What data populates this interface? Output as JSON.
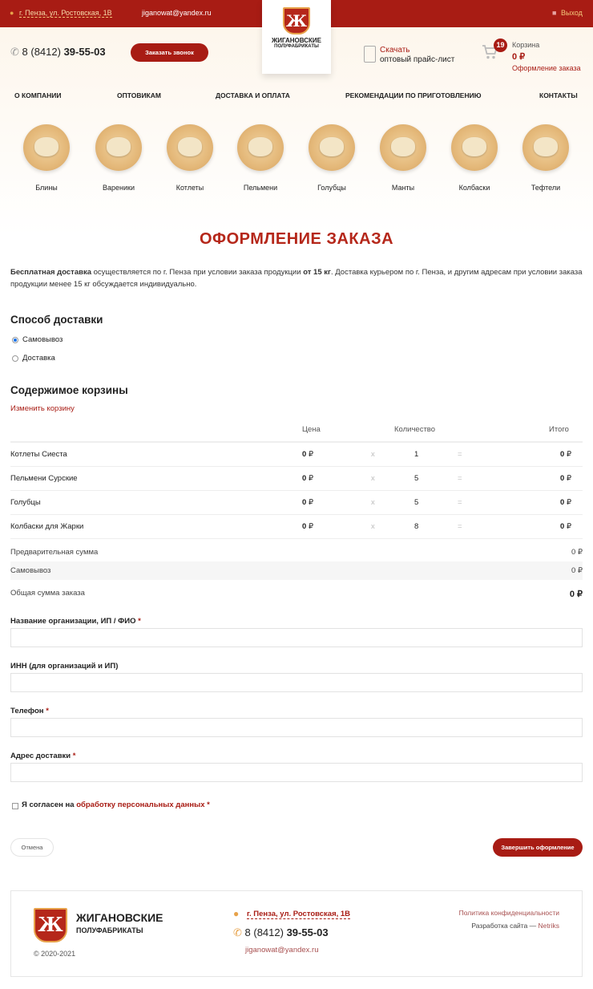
{
  "topbar": {
    "address": "г. Пенза, ул. Ростовская, 1В",
    "email": "jiganowat@yandex.ru",
    "logout": "Выход"
  },
  "logo": {
    "letter": "Ж",
    "line1": "ЖИГАНОВСКИЕ",
    "line2": "ПОЛУФАБРИКАТЫ"
  },
  "header": {
    "phone_prefix": "8 (8412)",
    "phone_main": "39-55-03",
    "callback": "Заказать звонок",
    "download_title": "Скачать",
    "download_sub": "оптовый прайс-лист",
    "cart_count": "19",
    "cart_label": "Корзина",
    "cart_total": "0 ₽",
    "checkout_link": "Оформление заказа"
  },
  "nav": [
    "О КОМПАНИИ",
    "ОПТОВИКАМ",
    "ДОСТАВКА И ОПЛАТА",
    "РЕКОМЕНДАЦИИ ПО ПРИГОТОВЛЕНИЮ",
    "КОНТАКТЫ"
  ],
  "categories": [
    "Блины",
    "Вареники",
    "Котлеты",
    "Пельмени",
    "Голубцы",
    "Манты",
    "Колбаски",
    "Тефтели"
  ],
  "page_title": "ОФОРМЛЕНИЕ ЗАКАЗА",
  "intro": {
    "b1": "Бесплатная доставка",
    "t1": " осуществляется по г. Пенза при условии заказа продукции ",
    "b2": "от 15 кг",
    "t2": ". Доставка курьером по г. Пенза, и другим адресам при условии заказа продукции менее 15 кг обсуждается индивидуально."
  },
  "delivery": {
    "title": "Способ доставки",
    "options": [
      "Самовывоз",
      "Доставка"
    ],
    "selected": "Самовывоз"
  },
  "cart": {
    "title": "Содержимое корзины",
    "edit": "Изменить корзину",
    "headers": {
      "price": "Цена",
      "qty": "Количество",
      "total": "Итого"
    },
    "items": [
      {
        "name": "Котлеты Сиеста",
        "price": "0",
        "qty": "1",
        "total": "0"
      },
      {
        "name": "Пельмени Сурские",
        "price": "0",
        "qty": "5",
        "total": "0"
      },
      {
        "name": "Голубцы",
        "price": "0",
        "qty": "5",
        "total": "0"
      },
      {
        "name": "Колбаски для Жарки",
        "price": "0",
        "qty": "8",
        "total": "0"
      }
    ],
    "currency": "₽",
    "times": "x",
    "equals": "=",
    "summary": [
      {
        "label": "Предварительная сумма",
        "value": "0 ₽"
      },
      {
        "label": "Самовывоз",
        "value": "0 ₽"
      },
      {
        "label": "Общая сумма заказа",
        "value": "0 ₽"
      }
    ]
  },
  "form": {
    "fields": [
      {
        "label": "Название организации, ИП / ФИО",
        "required": "*",
        "value": ""
      },
      {
        "label": "ИНН (для организаций и ИП)",
        "required": "",
        "value": ""
      },
      {
        "label": "Телефон",
        "required": "*",
        "value": ""
      },
      {
        "label": "Адрес доставки",
        "required": "*",
        "value": ""
      }
    ],
    "consent_pre": "Я согласен на ",
    "consent_link": "обработку персональных данных",
    "consent_req": " *",
    "cancel": "Отмена",
    "submit": "Завершить оформление"
  },
  "footer": {
    "logo1": "ЖИГАНОВСКИЕ",
    "logo2": "ПОЛУФАБРИКАТЫ",
    "copyright": "© 2020-2021",
    "address": "г. Пенза, ул. Ростовская, 1В",
    "phone_prefix": "8 (8412)",
    "phone_main": "39-55-03",
    "email": "jiganowat@yandex.ru",
    "privacy": "Политика конфиденциальности",
    "dev_pre": "Разработка сайта — ",
    "dev": "Netriks"
  },
  "colors": {
    "brand": "#a81c14",
    "accent": "#e7a24a"
  }
}
